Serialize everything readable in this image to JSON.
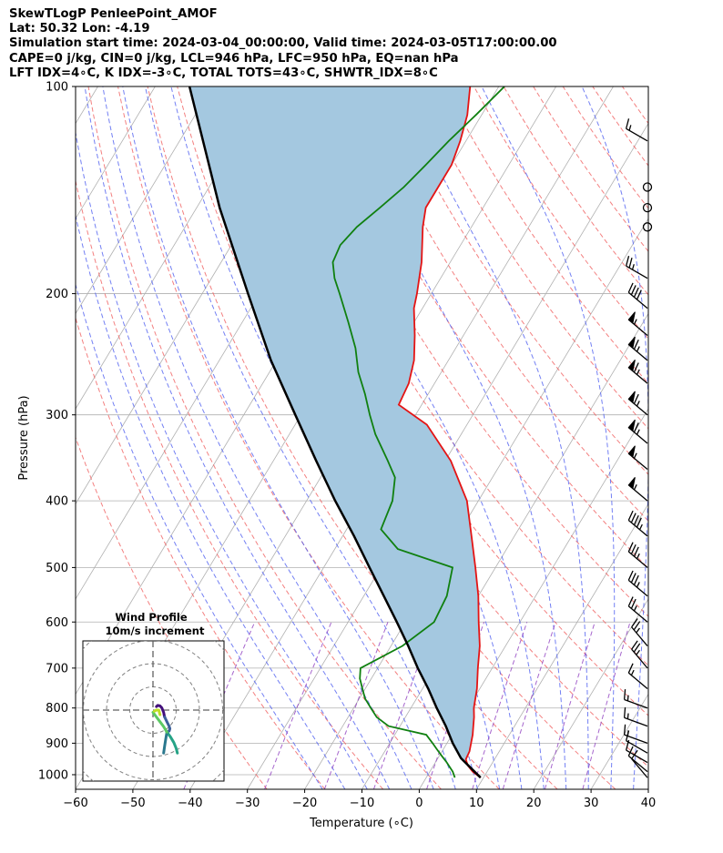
{
  "header": {
    "line1": "SkewTLogP PenleePoint_AMOF",
    "line2": "Lat: 50.32   Lon: -4.19",
    "line3": "Simulation start time: 2024-03-04_00:00:00, Valid time: 2024-03-05T17:00:00.00",
    "line4": "CAPE=0 j/kg, CIN=0 j/kg, LCL=946 hPa, LFC=950 hPa, EQ=nan hPa",
    "line5": "LFT IDX=4∘C, K IDX=-3∘C, TOTAL TOTS=43∘C, SHWTR_IDX=8∘C"
  },
  "chart_data": {
    "type": "line",
    "subtype": "skew-t log-p",
    "xlabel": "Temperature (∘C)",
    "ylabel": "Pressure (hPa)",
    "xlim": [
      -60,
      40
    ],
    "ylim": [
      1050,
      100
    ],
    "x_ticks": [
      -60,
      -50,
      -40,
      -30,
      -20,
      -10,
      0,
      10,
      20,
      30,
      40
    ],
    "y_ticks": [
      1000,
      900,
      800,
      700,
      600,
      500,
      400,
      300,
      200,
      100
    ],
    "y_scale": "log",
    "grid": true,
    "colors": {
      "temperature": "#e41414",
      "dewpoint": "#108010",
      "parcel": "#000000",
      "shading": "#a4c8e0",
      "dry_adiabat": "#f06060",
      "moist_adiabat": "#5060f0",
      "mixing_ratio": "#9040c0",
      "isotherm": "#b0b0b0"
    },
    "temperature": {
      "pressure": [
        1010,
        990,
        970,
        950,
        925,
        900,
        875,
        850,
        825,
        800,
        750,
        700,
        650,
        600,
        550,
        500,
        450,
        400,
        350,
        310,
        290,
        270,
        250,
        230,
        210,
        200,
        180,
        160,
        150,
        140,
        130,
        120,
        110,
        100
      ],
      "temp": [
        9.5,
        7.5,
        6.0,
        5.0,
        4.8,
        4.2,
        3.6,
        2.8,
        2.0,
        1.0,
        -0.5,
        -2.5,
        -4.5,
        -7.2,
        -10.0,
        -13.5,
        -17.5,
        -22.0,
        -29.0,
        -37.0,
        -44.0,
        -44.5,
        -46.0,
        -48.5,
        -51.5,
        -52.5,
        -55.0,
        -58.5,
        -60.0,
        -60.0,
        -60.0,
        -61.0,
        -62.5,
        -65.0
      ]
    },
    "dewpoint": {
      "pressure": [
        1010,
        990,
        960,
        940,
        920,
        900,
        875,
        850,
        825,
        800,
        775,
        750,
        725,
        700,
        650,
        600,
        550,
        500,
        470,
        440,
        400,
        370,
        350,
        320,
        300,
        280,
        260,
        240,
        220,
        200,
        190,
        180,
        170,
        160,
        150,
        140,
        130,
        120,
        110,
        100
      ],
      "dewpt": [
        5.0,
        4.0,
        2.0,
        0.5,
        -1.0,
        -2.5,
        -4.5,
        -12.0,
        -15.0,
        -17.0,
        -19.0,
        -20.5,
        -22.0,
        -23.0,
        -18.0,
        -15.0,
        -15.5,
        -17.5,
        -29.0,
        -34.0,
        -35.0,
        -37.0,
        -40.0,
        -45.0,
        -48.0,
        -51.0,
        -54.5,
        -57.5,
        -61.5,
        -66.0,
        -68.5,
        -70.5,
        -71.0,
        -70.0,
        -68.0,
        -66.0,
        -64.5,
        -63.0,
        -61.0,
        -59.0
      ]
    },
    "parcel": {
      "pressure": [
        1010,
        946,
        900,
        850,
        800,
        750,
        700,
        650,
        600,
        550,
        500,
        450,
        400,
        350,
        300,
        250,
        200,
        150,
        100
      ],
      "temp": [
        9.5,
        4.0,
        1.0,
        -2.0,
        -5.5,
        -9.0,
        -13.0,
        -17.0,
        -21.5,
        -26.5,
        -32.0,
        -38.0,
        -45.0,
        -52.5,
        -61.0,
        -71.0,
        -82.0,
        -96.0,
        -114.0
      ]
    },
    "wind_barbs": {
      "pressure": [
        1010,
        990,
        960,
        930,
        900,
        850,
        800,
        750,
        700,
        650,
        600,
        550,
        500,
        450,
        400,
        360,
        330,
        300,
        270,
        250,
        230,
        210,
        190,
        160,
        150,
        140,
        120
      ],
      "speed_kt": [
        10,
        10,
        10,
        10,
        15,
        15,
        15,
        15,
        25,
        25,
        25,
        35,
        35,
        45,
        55,
        55,
        65,
        65,
        65,
        65,
        55,
        40,
        25,
        0,
        0,
        0,
        15
      ],
      "dir_deg": [
        320,
        310,
        300,
        300,
        290,
        290,
        290,
        310,
        320,
        320,
        310,
        310,
        310,
        310,
        310,
        310,
        310,
        310,
        310,
        310,
        310,
        310,
        300,
        0,
        0,
        0,
        300
      ]
    },
    "hodograph": {
      "title": "Wind Profile",
      "subtitle": "10m/s increment",
      "segments": [
        {
          "color": "#43107a",
          "u": [
            1.5,
            2.0,
            3.0,
            3.8,
            4.2,
            4.6,
            4.8,
            5.0
          ],
          "v": [
            1.5,
            2.0,
            1.8,
            1.0,
            0.0,
            -1.0,
            -2.0,
            -3.0
          ]
        },
        {
          "color": "#3b5f9a",
          "u": [
            5.0,
            6.0,
            7.0,
            7.3,
            7.0,
            6.0
          ],
          "v": [
            -3.0,
            -5.0,
            -7.0,
            -8.0,
            -9.0,
            -9.5
          ]
        },
        {
          "color": "#26a386",
          "u": [
            6.0,
            7.5,
            9.0,
            10.0,
            10.5
          ],
          "v": [
            -9.5,
            -11.5,
            -14.0,
            -16.5,
            -18.5
          ]
        },
        {
          "color": "#2a788e",
          "u": [
            6.0,
            5.5,
            5.0,
            4.6
          ],
          "v": [
            -9.5,
            -12.5,
            -15.5,
            -18.5
          ]
        },
        {
          "color": "#5cc863",
          "u": [
            0.0,
            1.5,
            3.0,
            4.5,
            6.0
          ],
          "v": [
            -1.0,
            -3.0,
            -5.0,
            -7.0,
            -9.5
          ]
        },
        {
          "color": "#bddf26",
          "u": [
            0.5,
            1.5,
            2.5,
            3.0
          ],
          "v": [
            -0.5,
            0.0,
            0.0,
            -2.0
          ]
        }
      ]
    }
  }
}
